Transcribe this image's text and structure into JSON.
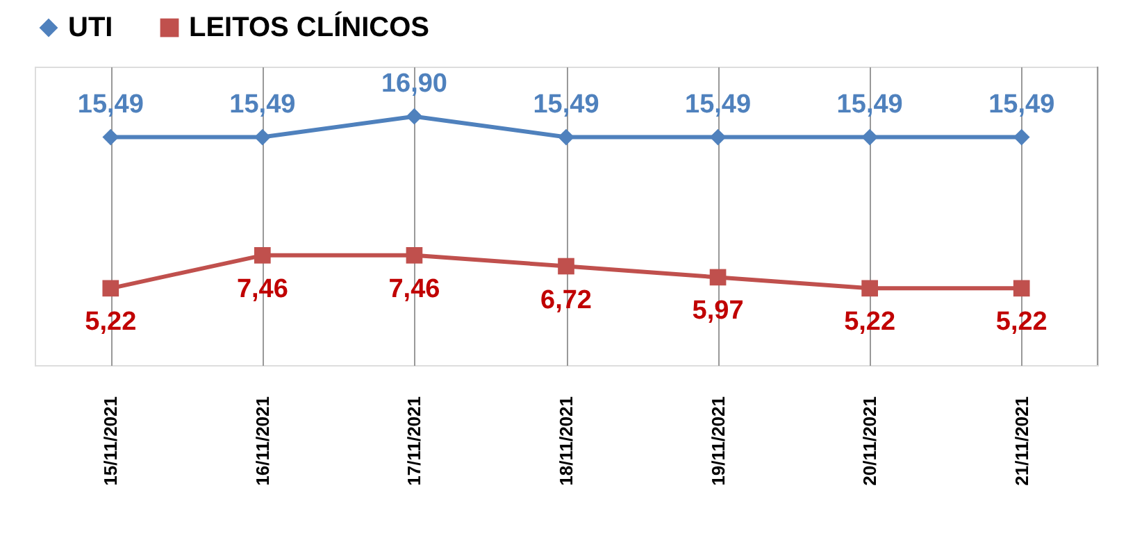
{
  "chart_data": {
    "type": "line",
    "categories": [
      "15/11/2021",
      "16/11/2021",
      "17/11/2021",
      "18/11/2021",
      "19/11/2021",
      "20/11/2021",
      "21/11/2021"
    ],
    "series": [
      {
        "name": "UTI",
        "color": "#4f81bd",
        "marker": "diamond",
        "values": [
          15.49,
          15.49,
          16.9,
          15.49,
          15.49,
          15.49,
          15.49
        ],
        "value_labels": [
          "15,49",
          "15,49",
          "16,90",
          "15,49",
          "15,49",
          "15,49",
          "15,49"
        ]
      },
      {
        "name": "LEITOS CLÍNICOS",
        "color": "#c0504d",
        "marker": "square",
        "values": [
          5.22,
          7.46,
          7.46,
          6.72,
          5.97,
          5.22,
          5.22
        ],
        "value_labels": [
          "5,22",
          "7,46",
          "7,46",
          "6,72",
          "5,97",
          "5,22",
          "5,22"
        ]
      }
    ],
    "grid": "x",
    "legend": "top",
    "tick_labels": "x",
    "line_style": "solid"
  }
}
